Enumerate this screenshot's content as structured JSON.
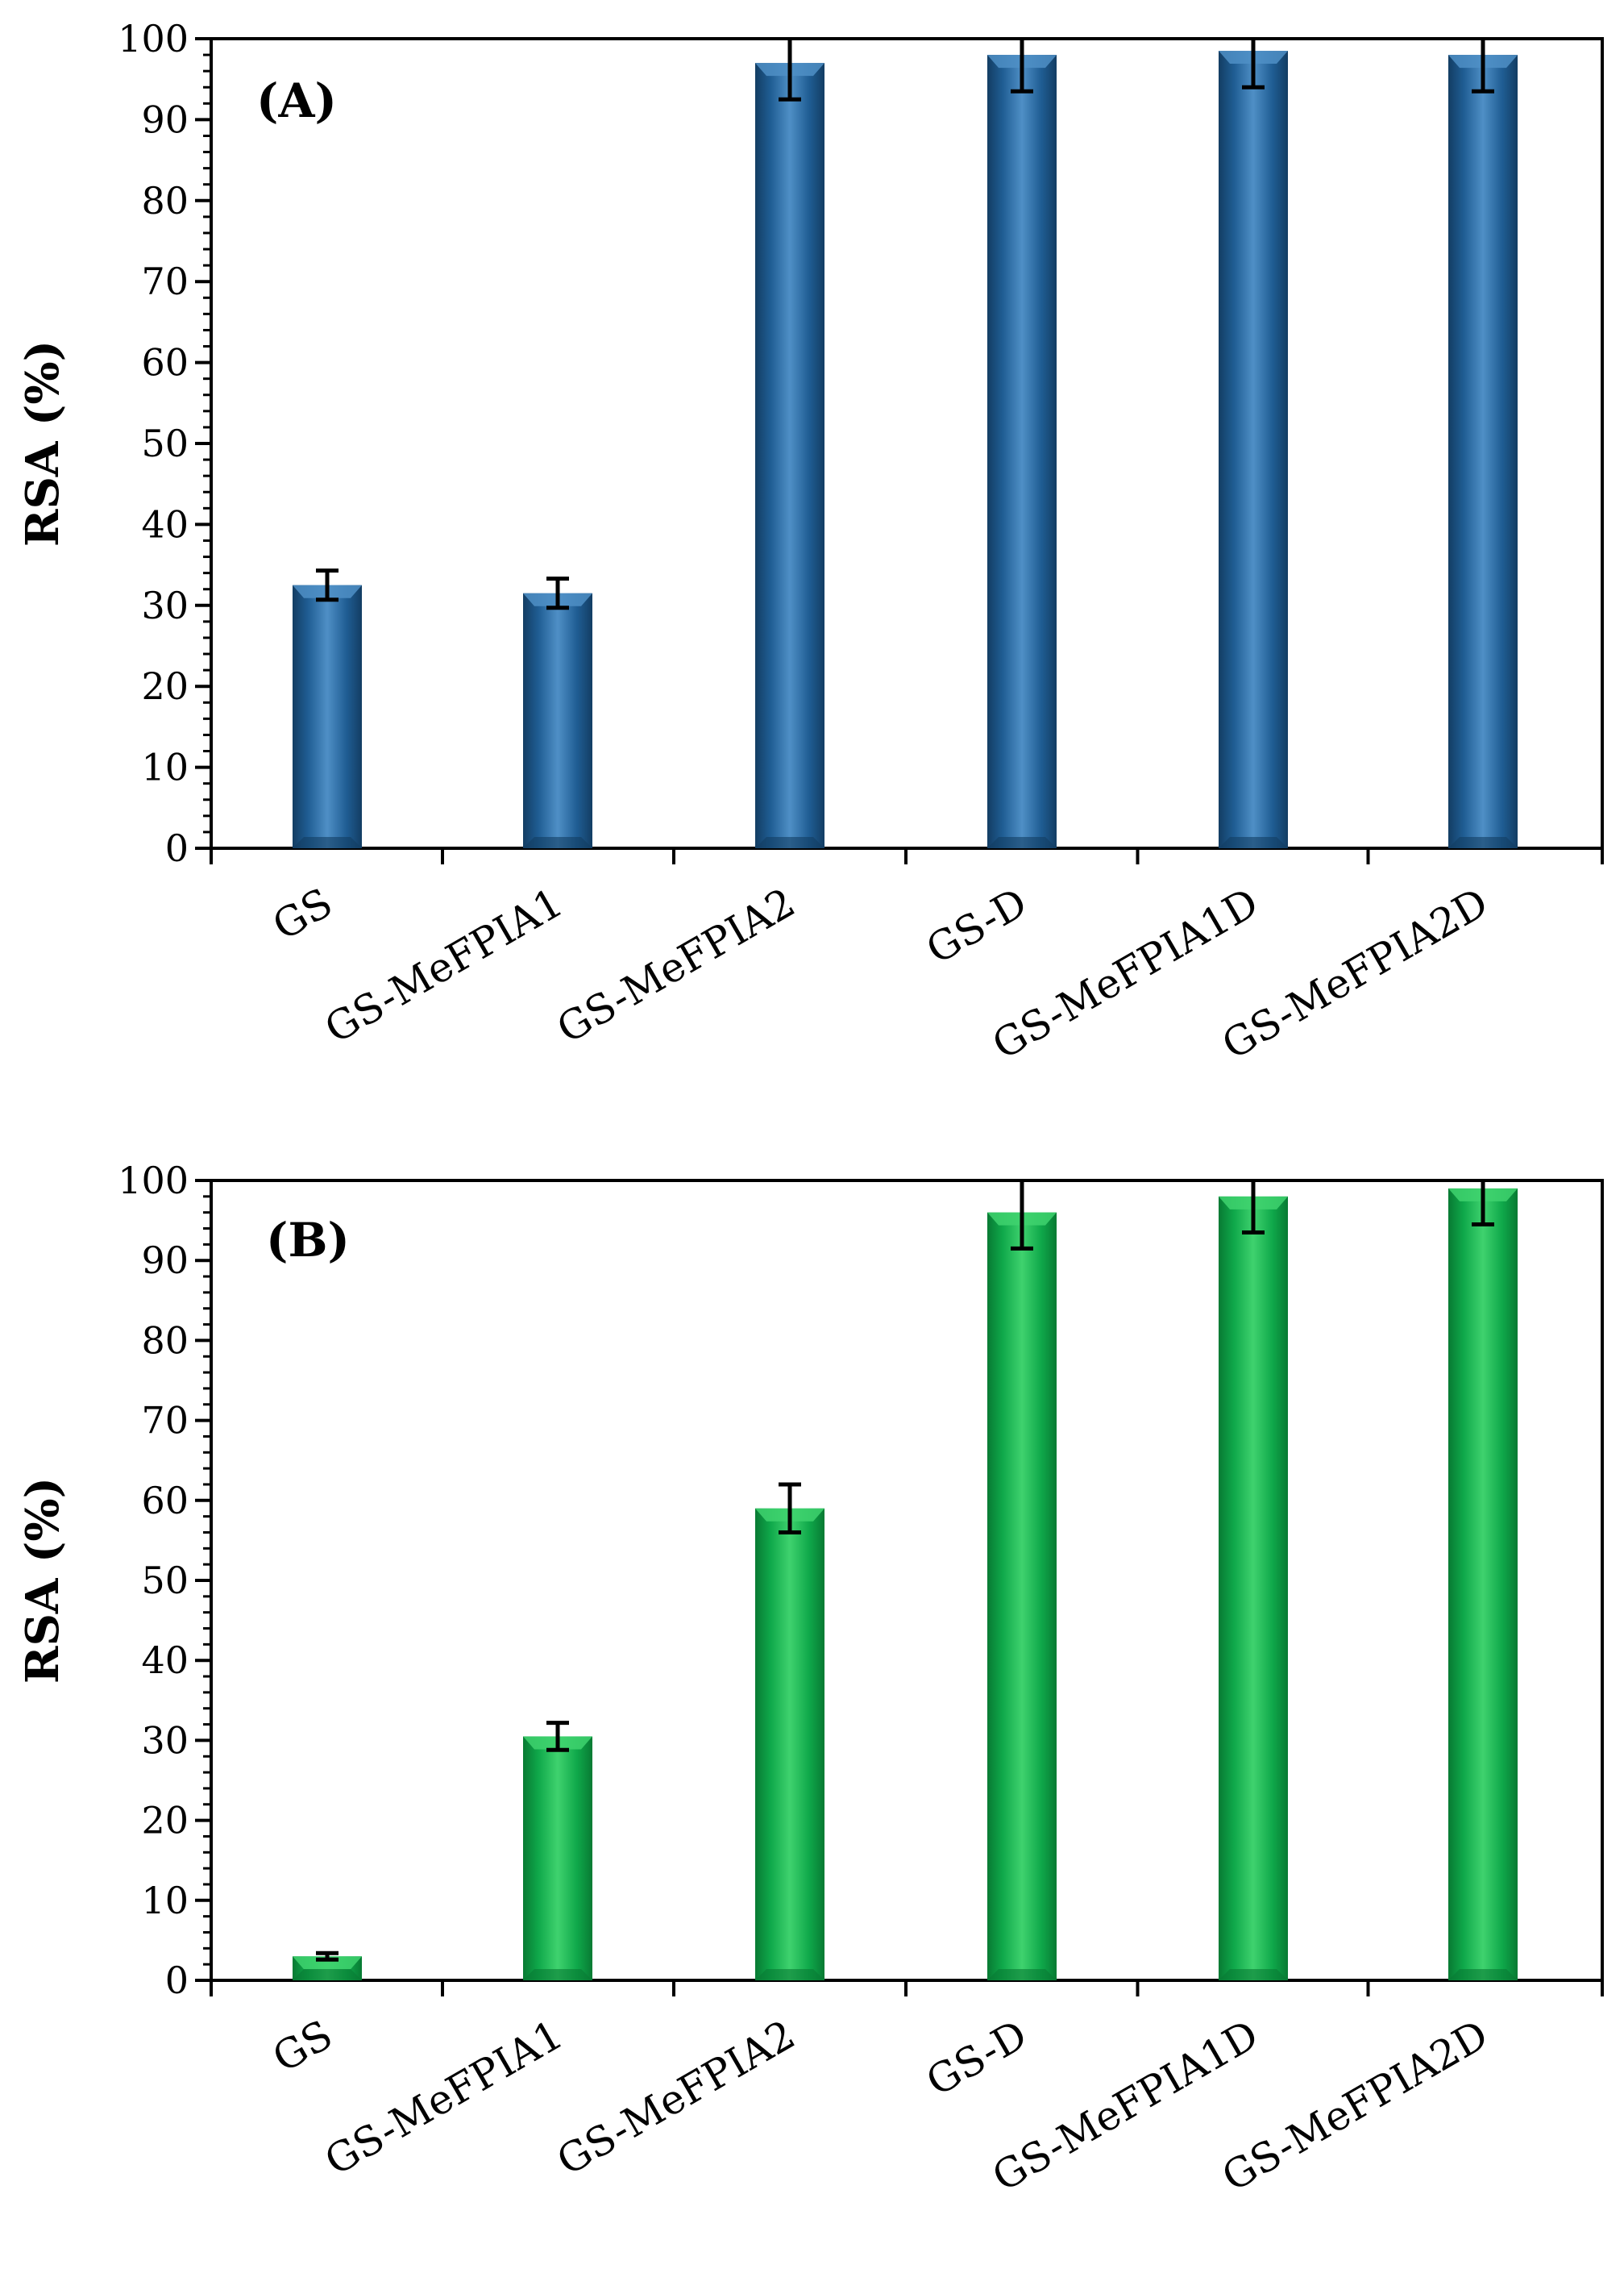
{
  "chart_data": [
    {
      "type": "bar",
      "title": "(A)",
      "xlabel": "",
      "ylabel": "RSA (%)",
      "ylim": [
        0,
        100
      ],
      "yticks": [
        0,
        10,
        20,
        30,
        40,
        50,
        60,
        70,
        80,
        90,
        100
      ],
      "categories": [
        "GS",
        "GS-MeFPIA1",
        "GS-MeFPIA2",
        "GS-D",
        "GS-MeFPIA1D",
        "GS-MeFPIA2D"
      ],
      "values": [
        32.5,
        31.5,
        97,
        98,
        98.5,
        98
      ],
      "errors": [
        1.8,
        1.8,
        4.5,
        4.5,
        4.5,
        4.5
      ],
      "color": "#1f5d93",
      "color_light": "#4f8fc6",
      "color_dark": "#133d63"
    },
    {
      "type": "bar",
      "title": "(B)",
      "xlabel": "",
      "ylabel": "RSA (%)",
      "ylim": [
        0,
        100
      ],
      "yticks": [
        0,
        10,
        20,
        30,
        40,
        50,
        60,
        70,
        80,
        90,
        100
      ],
      "categories": [
        "GS",
        "GS-MeFPIA1",
        "GS-MeFPIA2",
        "GS-D",
        "GS-MeFPIA1D",
        "GS-MeFPIA2D"
      ],
      "values": [
        3,
        30.5,
        59,
        96,
        98,
        99
      ],
      "errors": [
        0.4,
        1.7,
        3,
        4.5,
        4.5,
        4.5
      ],
      "color": "#0fa84a",
      "color_light": "#3fd26e",
      "color_dark": "#087a33"
    }
  ]
}
